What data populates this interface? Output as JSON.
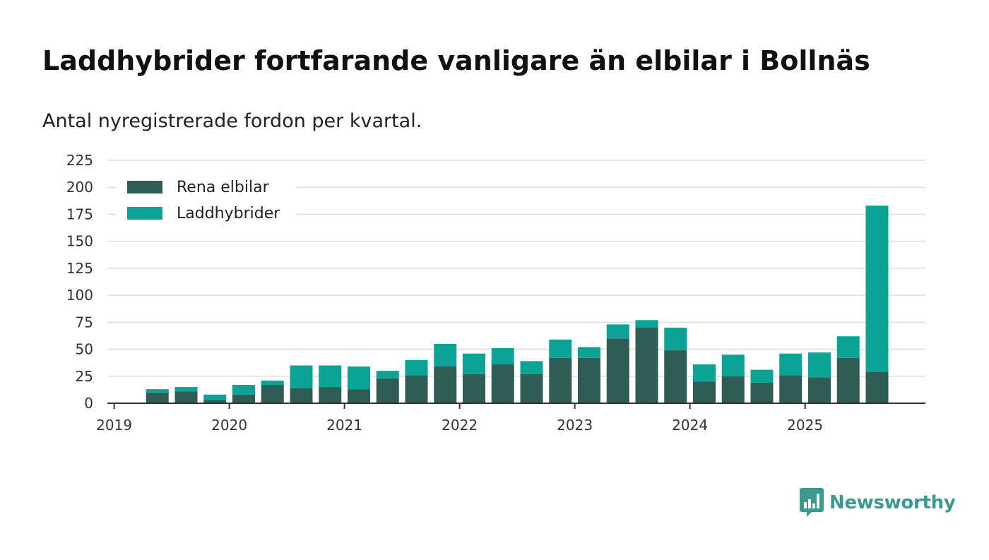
{
  "header": {
    "title": "Laddhybrider fortfarande vanligare än elbilar i Bollnäs",
    "subtitle": "Antal nyregistrerade fordon per kvartal."
  },
  "brand": {
    "name": "Newsworthy",
    "color": "#3a9a8f",
    "icon": "chart-bubble-icon"
  },
  "colors": {
    "elbilar": "#2f5d56",
    "laddhybrider": "#0aa396",
    "grid": "#dddddd",
    "axis": "#333333"
  },
  "chart_data": {
    "type": "bar",
    "stacked": true,
    "title": "Laddhybrider fortfarande vanligare än elbilar i Bollnäs",
    "subtitle": "Antal nyregistrerade fordon per kvartal.",
    "xlabel": "",
    "ylabel": "",
    "ylim": [
      0,
      225
    ],
    "yticks": [
      0,
      25,
      50,
      75,
      100,
      125,
      150,
      175,
      200,
      225
    ],
    "xticks": [
      "2019",
      "2020",
      "2021",
      "2022",
      "2023",
      "2024",
      "2025"
    ],
    "legend_position": "top-left",
    "grid": true,
    "categories": [
      "2019 Q1",
      "2019 Q2",
      "2019 Q3",
      "2019 Q4",
      "2020 Q1",
      "2020 Q2",
      "2020 Q3",
      "2020 Q4",
      "2021 Q1",
      "2021 Q2",
      "2021 Q3",
      "2021 Q4",
      "2022 Q1",
      "2022 Q2",
      "2022 Q3",
      "2022 Q4",
      "2023 Q1",
      "2023 Q2",
      "2023 Q3",
      "2023 Q4",
      "2024 Q1",
      "2024 Q2",
      "2024 Q3",
      "2024 Q4",
      "2025 Q1",
      "2025 Q2",
      "2025 Q3"
    ],
    "series": [
      {
        "name": "Rena elbilar",
        "color": "#2f5d56",
        "values": [
          0,
          10,
          11,
          3,
          8,
          17,
          14,
          15,
          13,
          23,
          26,
          34,
          27,
          36,
          27,
          42,
          42,
          60,
          70,
          49,
          20,
          25,
          19,
          26,
          24,
          42,
          29
        ]
      },
      {
        "name": "Laddhybrider",
        "color": "#0aa396",
        "values": [
          0,
          3,
          4,
          5,
          9,
          4,
          21,
          20,
          21,
          7,
          14,
          21,
          19,
          15,
          12,
          17,
          10,
          13,
          7,
          21,
          16,
          20,
          12,
          20,
          23,
          20,
          154
        ]
      }
    ]
  }
}
